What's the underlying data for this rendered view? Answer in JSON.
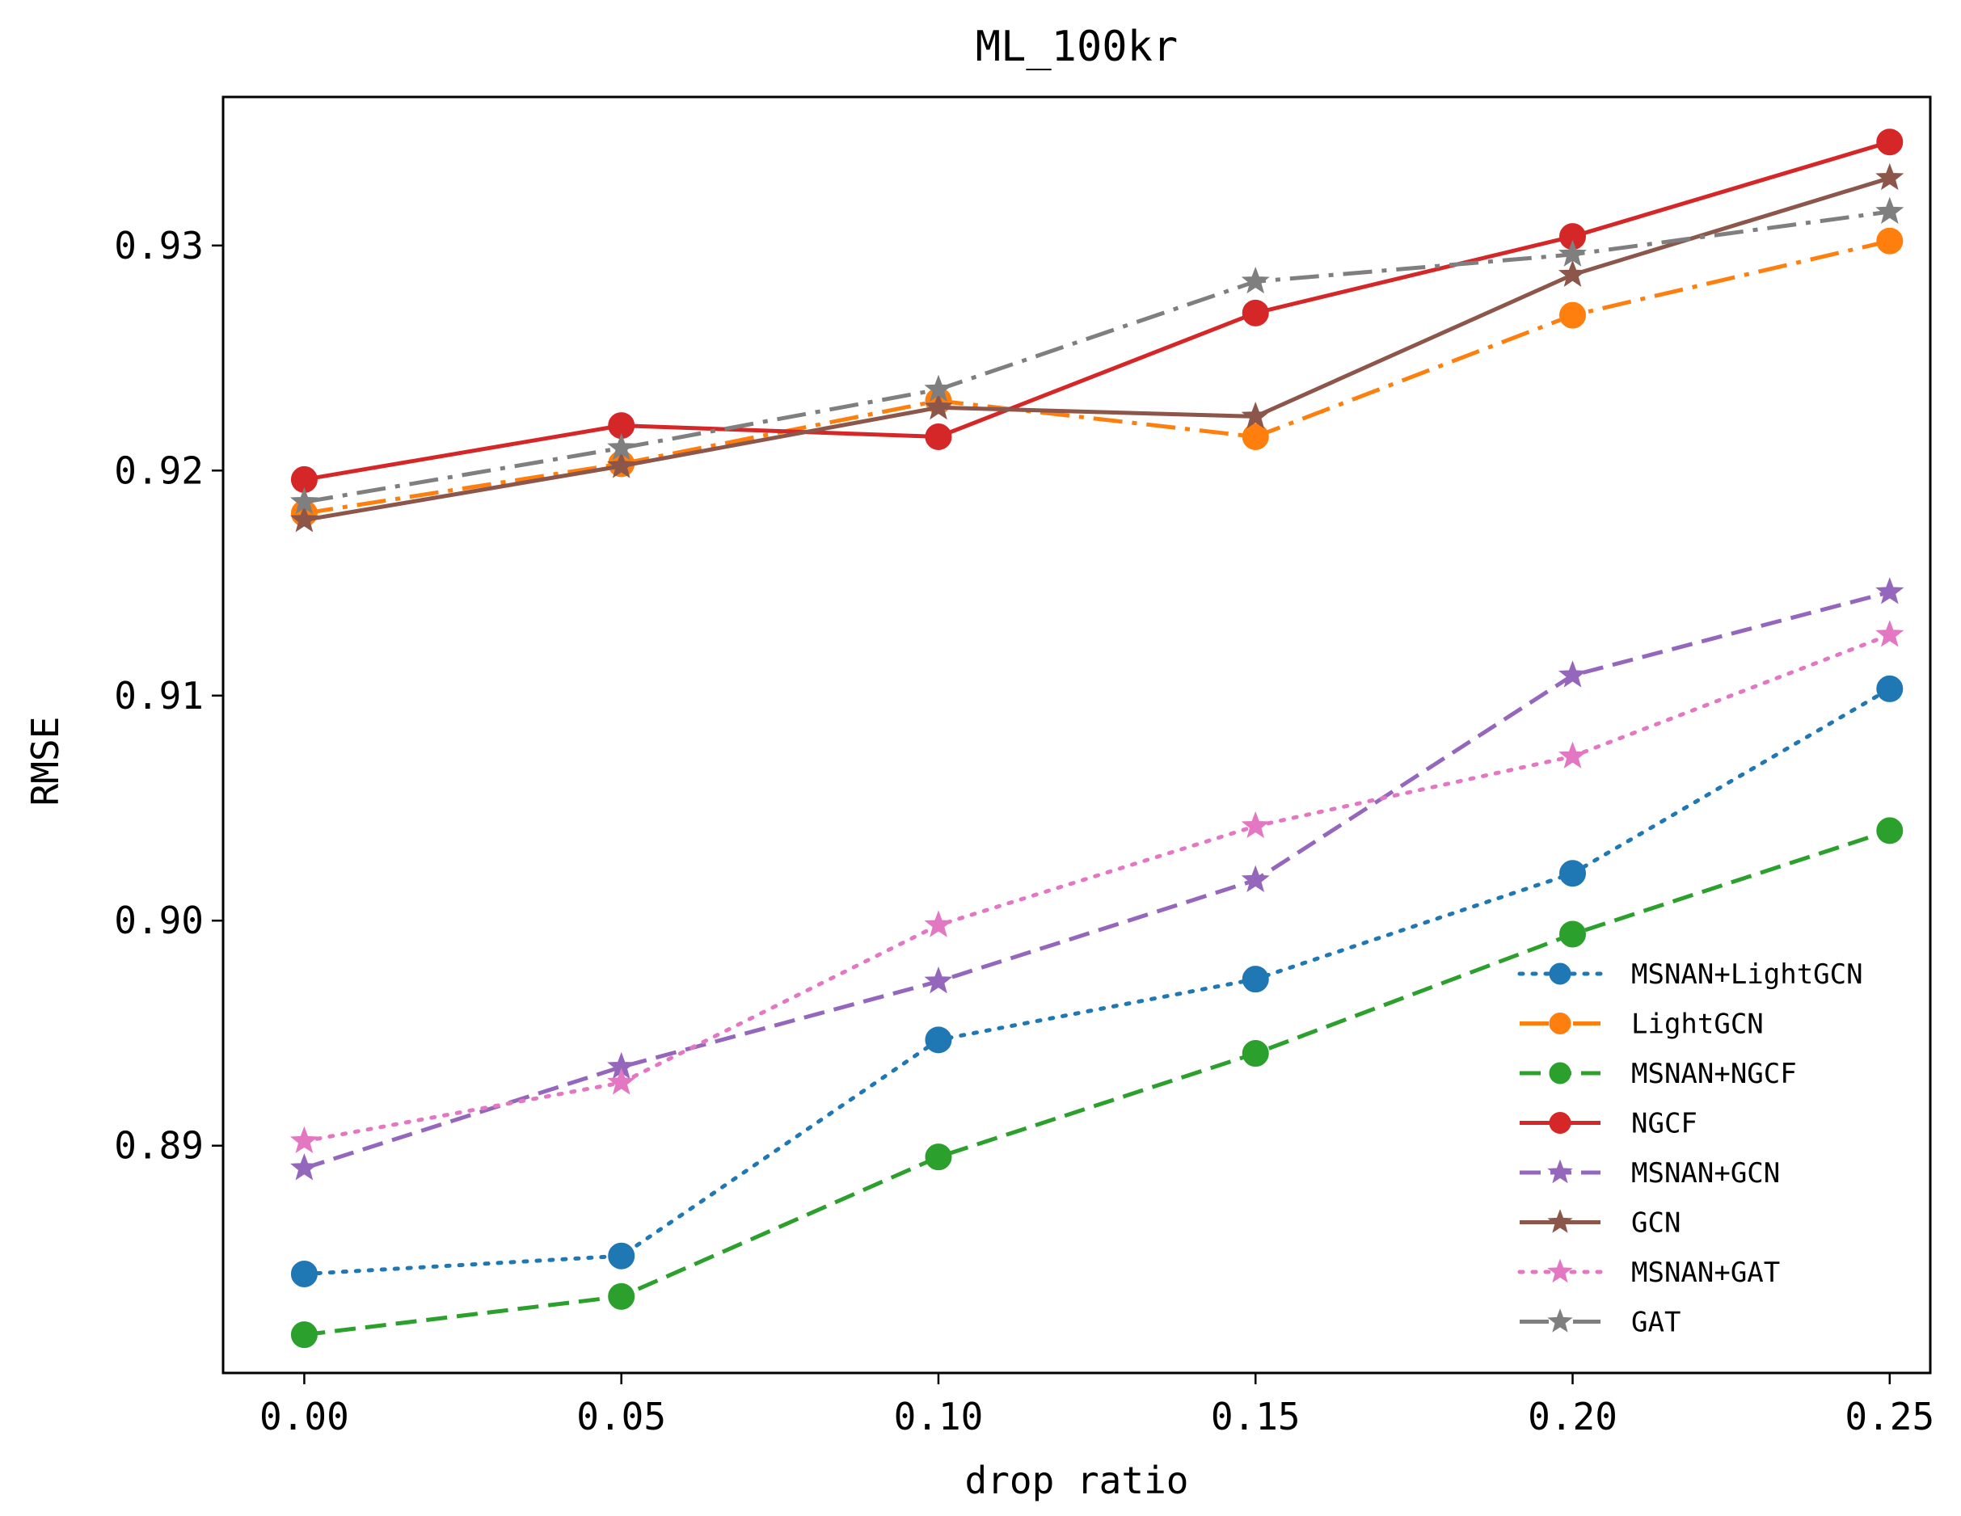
{
  "chart_data": {
    "type": "line",
    "title": "ML_100kr",
    "xlabel": "drop ratio",
    "ylabel": "RMSE",
    "x": [
      0.0,
      0.05,
      0.1,
      0.15,
      0.2,
      0.25
    ],
    "xticks": [
      0.0,
      0.05,
      0.1,
      0.15,
      0.2,
      0.25
    ],
    "xtick_labels": [
      "0.00",
      "0.05",
      "0.10",
      "0.15",
      "0.20",
      "0.25"
    ],
    "yticks": [
      0.89,
      0.9,
      0.91,
      0.92,
      0.93
    ],
    "ytick_labels": [
      "0.89",
      "0.90",
      "0.91",
      "0.92",
      "0.93"
    ],
    "xlim": [
      -0.0128,
      0.2564
    ],
    "ylim": [
      0.8799,
      0.9366
    ],
    "grid": false,
    "legend_position": "bottom-right",
    "series": [
      {
        "name": "MSNAN+LightGCN",
        "color": "#1f77b4",
        "marker": "circle",
        "linestyle": "dotted",
        "values": [
          0.8843,
          0.8851,
          0.8947,
          0.8974,
          0.9021,
          0.9103
        ]
      },
      {
        "name": "LightGCN",
        "color": "#ff7f0e",
        "marker": "circle",
        "linestyle": "dashdot",
        "values": [
          0.9181,
          0.9203,
          0.9231,
          0.9215,
          0.9269,
          0.9302
        ]
      },
      {
        "name": "MSNAN+NGCF",
        "color": "#2ca02c",
        "marker": "circle",
        "linestyle": "dashed",
        "values": [
          0.8816,
          0.8833,
          0.8895,
          0.8941,
          0.8994,
          0.904
        ]
      },
      {
        "name": "NGCF",
        "color": "#d62728",
        "marker": "circle",
        "linestyle": "solid",
        "values": [
          0.9196,
          0.922,
          0.9215,
          0.927,
          0.9304,
          0.9346
        ]
      },
      {
        "name": "MSNAN+GCN",
        "color": "#9467bd",
        "marker": "star",
        "linestyle": "dashed",
        "values": [
          0.889,
          0.8935,
          0.8973,
          0.9018,
          0.9109,
          0.9146
        ]
      },
      {
        "name": "GCN",
        "color": "#8c564b",
        "marker": "star",
        "linestyle": "solid",
        "values": [
          0.9178,
          0.9202,
          0.9228,
          0.9224,
          0.9287,
          0.933
        ]
      },
      {
        "name": "MSNAN+GAT",
        "color": "#e377c2",
        "marker": "star",
        "linestyle": "dotted",
        "values": [
          0.8902,
          0.8928,
          0.8998,
          0.9042,
          0.9073,
          0.9127
        ]
      },
      {
        "name": "GAT",
        "color": "#7f7f7f",
        "marker": "star",
        "linestyle": "dashdot",
        "values": [
          0.9186,
          0.921,
          0.9236,
          0.9284,
          0.9296,
          0.9315
        ]
      }
    ]
  }
}
